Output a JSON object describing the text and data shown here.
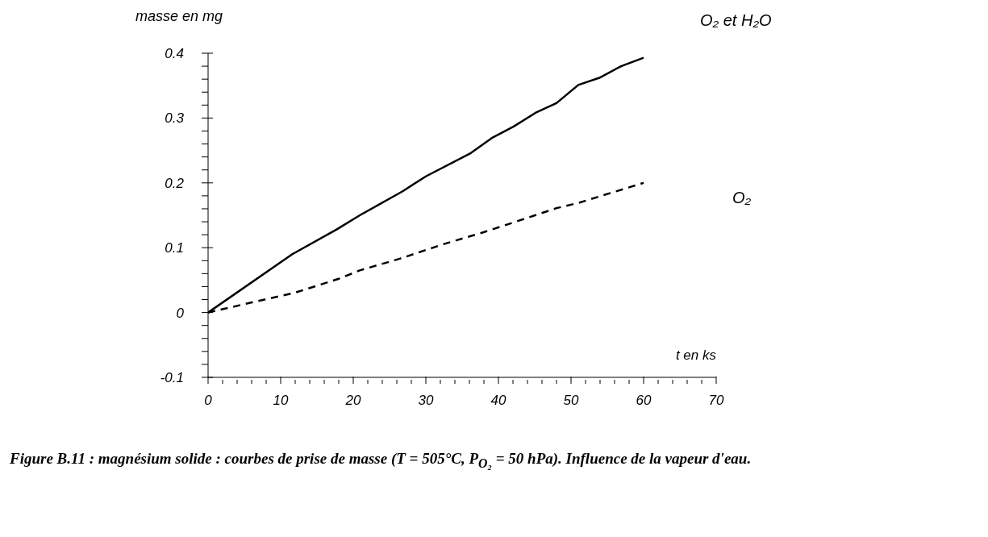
{
  "chart_data": {
    "type": "line",
    "xlabel": "t en ks",
    "ylabel": "masse en mg",
    "annotations": [
      "Figure B.11 :  magnésium solide : courbes de prise de masse (T = 505°C, P$_{O₂}$ = 50 hPa). Influence de la vapeur d'eau."
    ],
    "xlim": [
      0,
      70
    ],
    "ylim": [
      -0.1,
      0.4
    ],
    "xticks": [
      0,
      {
        "value": 2,
        "label": null
      },
      {
        "value": 4,
        "label": null
      },
      {
        "value": 6,
        "label": null
      },
      {
        "value": 8,
        "label": null
      },
      10,
      {
        "value": 12,
        "label": null
      },
      {
        "value": 14,
        "label": null
      },
      {
        "value": 16,
        "label": null
      },
      {
        "value": 18,
        "label": null
      },
      20,
      {
        "value": 22,
        "label": null
      },
      {
        "value": 24,
        "label": null
      },
      {
        "value": 26,
        "label": null
      },
      {
        "value": 28,
        "label": null
      },
      30,
      {
        "value": 32,
        "label": null
      },
      {
        "value": 34,
        "label": null
      },
      {
        "value": 36,
        "label": null
      },
      {
        "value": 38,
        "label": null
      },
      40,
      {
        "value": 42,
        "label": null
      },
      {
        "value": 44,
        "label": null
      },
      {
        "value": 46,
        "label": null
      },
      {
        "value": 48,
        "label": null
      },
      50,
      {
        "value": 52,
        "label": null
      },
      {
        "value": 54,
        "label": null
      },
      {
        "value": 56,
        "label": null
      },
      {
        "value": 58,
        "label": null
      },
      60,
      {
        "value": 62,
        "label": null
      },
      {
        "value": 64,
        "label": null
      },
      {
        "value": 66,
        "label": null
      },
      {
        "value": 68,
        "label": null
      },
      70
    ],
    "yticks": [
      -0.1,
      {
        "value": -0.08,
        "label": null
      },
      {
        "value": -0.06,
        "label": null
      },
      {
        "value": -0.04,
        "label": null
      },
      {
        "value": -0.02,
        "label": null
      },
      0,
      {
        "value": 0.02,
        "label": null
      },
      {
        "value": 0.04,
        "label": null
      },
      {
        "value": 0.06,
        "label": null
      },
      {
        "value": 0.08,
        "label": null
      },
      0.1,
      {
        "value": 0.12,
        "label": null
      },
      {
        "value": 0.14,
        "label": null
      },
      {
        "value": 0.16,
        "label": null
      },
      {
        "value": 0.18,
        "label": null
      },
      0.2,
      {
        "value": 0.22,
        "label": null
      },
      {
        "value": 0.24,
        "label": null
      },
      {
        "value": 0.26,
        "label": null
      },
      {
        "value": 0.28,
        "label": null
      },
      0.3,
      {
        "value": 0.32,
        "label": null
      },
      {
        "value": 0.34,
        "label": null
      },
      {
        "value": 0.36,
        "label": null
      },
      {
        "value": 0.38,
        "label": null
      },
      0.4
    ],
    "grid": false,
    "legend": false,
    "marker": "none",
    "series": [
      {
        "name": "O₂ et H₂O",
        "color": "#000000",
        "line_style": "solid",
        "x": [
          0,
          11.6,
          17.7,
          20.9,
          26.8,
          30,
          36.2,
          39.2,
          42.1,
          45.1,
          48,
          51,
          53.9,
          56.9,
          60
        ],
        "values": [
          0,
          0.09,
          0.128,
          0.15,
          0.187,
          0.21,
          0.246,
          0.27,
          0.287,
          0.308,
          0.323,
          0.351,
          0.362,
          0.38,
          0.393
        ]
      },
      {
        "name": "O₂",
        "color": "#000000",
        "line_style": "dashed",
        "x": [
          0,
          6.2,
          11.8,
          18,
          20.9,
          26.4,
          32.3,
          37.7,
          42.1,
          48,
          51,
          60
        ],
        "values": [
          0,
          0.016,
          0.03,
          0.052,
          0.065,
          0.083,
          0.105,
          0.123,
          0.139,
          0.161,
          0.169,
          0.2
        ]
      }
    ]
  }
}
